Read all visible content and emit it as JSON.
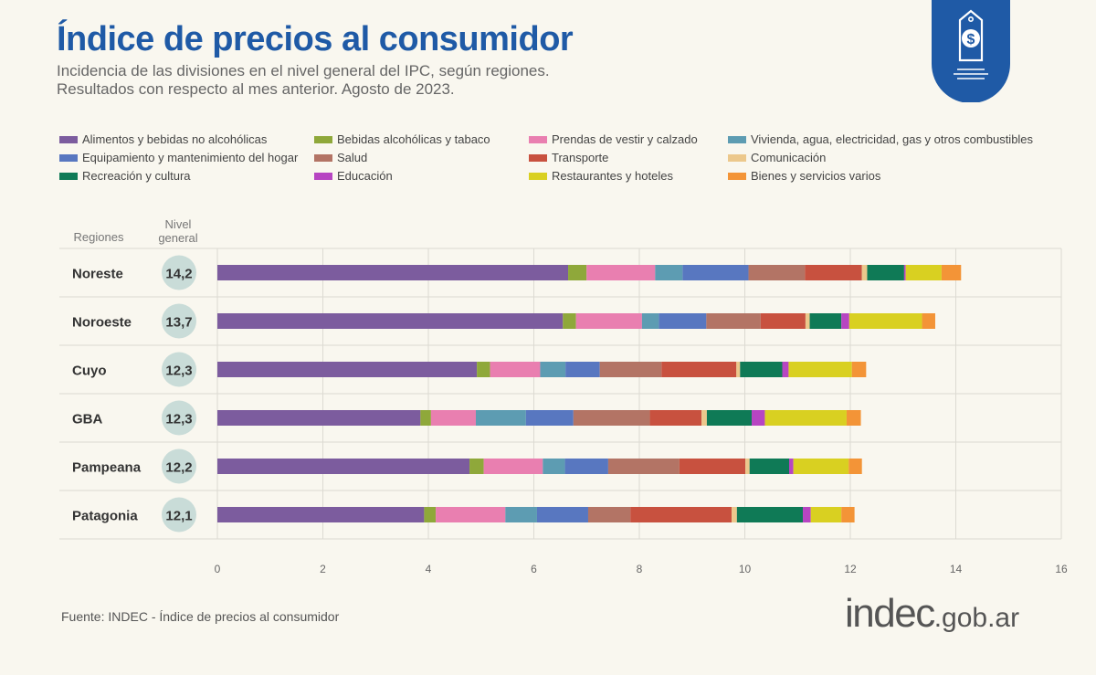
{
  "header": {
    "title": "Índice de precios al consumidor",
    "subtitle_line1": "Incidencia de las divisiones en el nivel general del IPC, según regiones.",
    "subtitle_line2": "Resultados con respecto al mes anterior. Agosto de 2023."
  },
  "columns": {
    "regions_label": "Regiones",
    "general_label_1": "Nivel",
    "general_label_2": "general"
  },
  "footer": {
    "source": "Fuente: INDEC - Índice de precios al consumidor",
    "brand_main": "indec",
    "brand_suffix": ".gob.ar"
  },
  "badge_icon": "price-tag-dollar-icon",
  "colors": {
    "title": "#1f5aa6",
    "badge": "#1f5aa6",
    "badge_circle": "#c9dcd8"
  },
  "chart_data": {
    "type": "bar",
    "orientation": "horizontal",
    "stacked": true,
    "categories": [
      "Noreste",
      "Noroeste",
      "Cuyo",
      "GBA",
      "Pampeana",
      "Patagonia"
    ],
    "nivel_general": [
      "14,2",
      "13,7",
      "12,3",
      "12,3",
      "12,2",
      "12,1"
    ],
    "xlim": [
      0,
      16
    ],
    "xticks": [
      0,
      2,
      4,
      6,
      8,
      10,
      12,
      14,
      16
    ],
    "grid": true,
    "legend_position": "top",
    "series": [
      {
        "name": "Alimentos y bebidas no alcohólicas",
        "color": "#7c5c9e",
        "values": [
          6.65,
          6.55,
          4.92,
          3.85,
          4.78,
          3.92
        ]
      },
      {
        "name": "Bebidas alcohólicas y tabaco",
        "color": "#8fa83a",
        "values": [
          0.35,
          0.25,
          0.25,
          0.2,
          0.27,
          0.22
        ]
      },
      {
        "name": "Prendas de vestir y calzado",
        "color": "#e97fb0",
        "values": [
          1.3,
          1.25,
          0.95,
          0.85,
          1.12,
          1.32
        ]
      },
      {
        "name": "Vivienda, agua, electricidad, gas y otros combustibles",
        "color": "#5d9cb2",
        "values": [
          0.52,
          0.32,
          0.48,
          0.95,
          0.42,
          0.6
        ]
      },
      {
        "name": "Equipamiento y mantenimiento del hogar",
        "color": "#5877c0",
        "values": [
          1.25,
          0.9,
          0.65,
          0.9,
          0.82,
          0.97
        ]
      },
      {
        "name": "Salud",
        "color": "#b37465",
        "values": [
          1.07,
          1.03,
          1.17,
          1.45,
          1.35,
          0.8
        ]
      },
      {
        "name": "Transporte",
        "color": "#c8513f",
        "values": [
          1.08,
          0.85,
          1.42,
          0.98,
          1.25,
          1.92
        ]
      },
      {
        "name": "Comunicación",
        "color": "#ecc88c",
        "values": [
          0.1,
          0.08,
          0.07,
          0.1,
          0.08,
          0.1
        ]
      },
      {
        "name": "Recreación y cultura",
        "color": "#0f7a56",
        "values": [
          0.7,
          0.6,
          0.8,
          0.85,
          0.75,
          1.25
        ]
      },
      {
        "name": "Educación",
        "color": "#b745c2",
        "values": [
          0.03,
          0.15,
          0.12,
          0.25,
          0.08,
          0.15
        ]
      },
      {
        "name": "Restaurantes y hoteles",
        "color": "#d9d021",
        "values": [
          0.68,
          1.38,
          1.2,
          1.55,
          1.05,
          0.58
        ]
      },
      {
        "name": "Bienes y servicios varios",
        "color": "#f39437",
        "values": [
          0.37,
          0.25,
          0.27,
          0.27,
          0.25,
          0.25
        ]
      }
    ]
  }
}
